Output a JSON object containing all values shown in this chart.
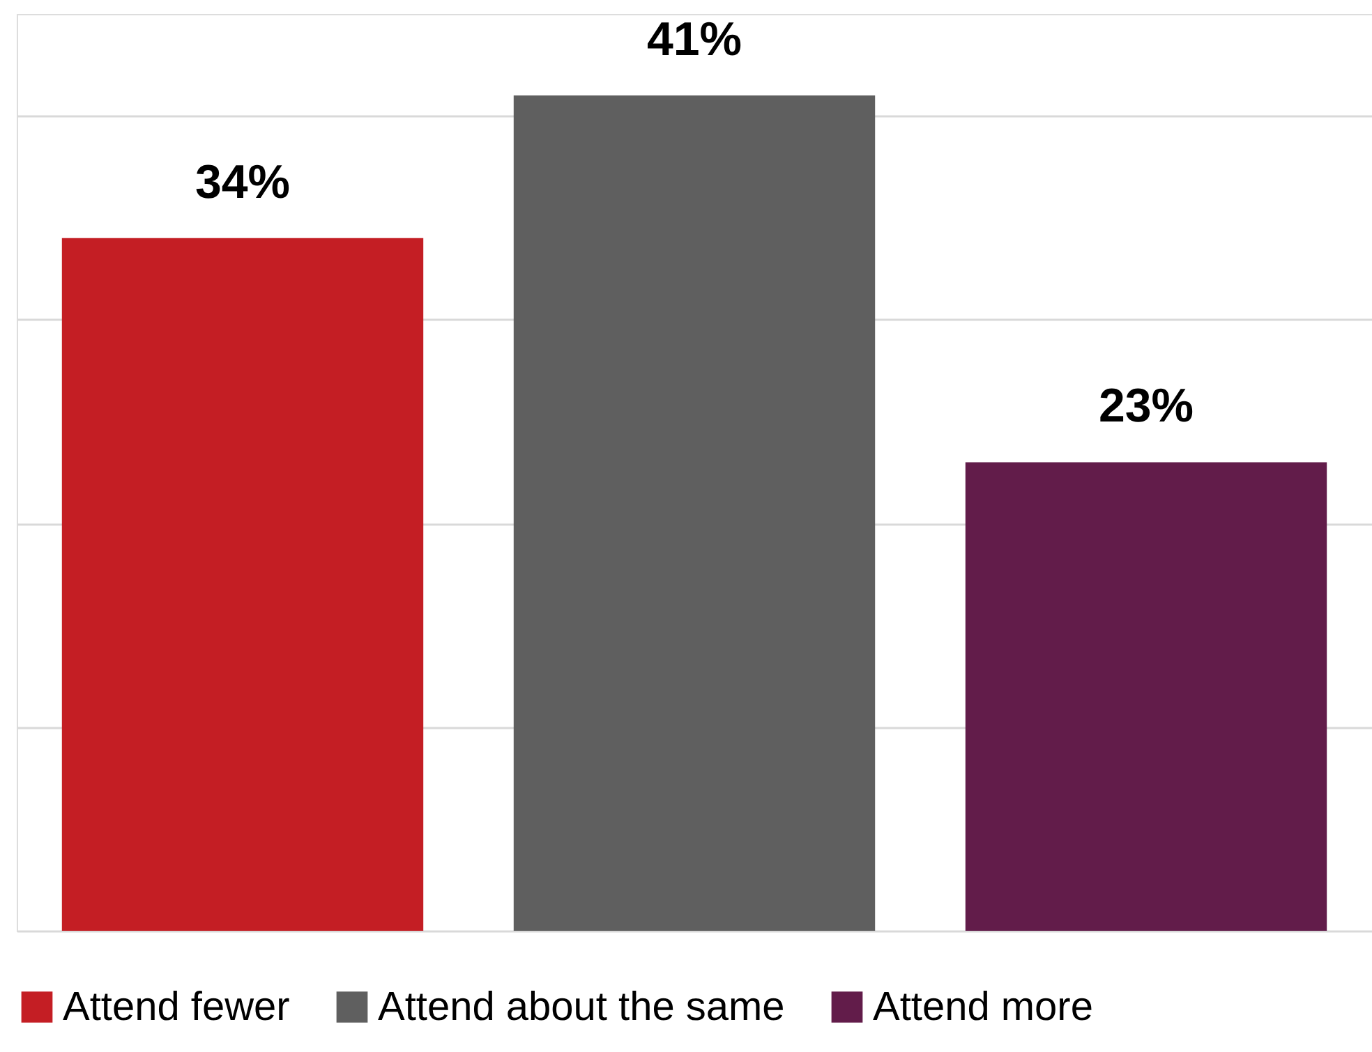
{
  "chart_data": {
    "type": "bar",
    "categories": [
      null
    ],
    "series": [
      {
        "name": "Attend fewer",
        "color": "#c41e24",
        "values": [
          34
        ],
        "value_labels": [
          "34%"
        ]
      },
      {
        "name": "Attend about the same",
        "color": "#5f5f5f",
        "values": [
          41
        ],
        "value_labels": [
          "41%"
        ]
      },
      {
        "name": "Attend more",
        "color": "#621c4a",
        "values": [
          23
        ],
        "value_labels": [
          "23%"
        ]
      }
    ],
    "grid": "y",
    "legend": "bottom",
    "tick_labels": false
  }
}
